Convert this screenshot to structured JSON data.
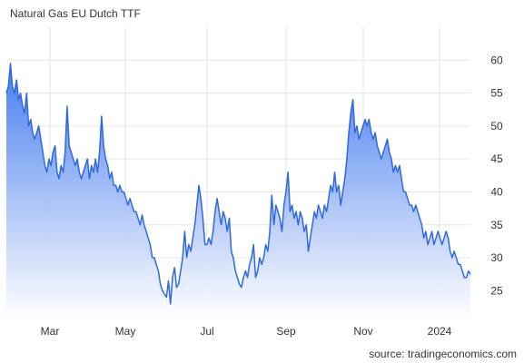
{
  "chart_data": {
    "type": "area",
    "title": "Natural Gas EU Dutch TTF",
    "source": "source: tradingeconomics.com",
    "xlabel": "",
    "ylabel": "",
    "x_tick_labels": [
      "Mar",
      "May",
      "Jul",
      "Sep",
      "Nov",
      "2024"
    ],
    "y_ticks": [
      25,
      30,
      35,
      40,
      45,
      50,
      55,
      60
    ],
    "ylim": [
      20.5,
      65
    ],
    "grid": true,
    "colors": {
      "line": "#2f68e0",
      "fill_top": "#3c74ee",
      "fill_bottom": "#ffffff",
      "grid": "#e6e6e6"
    },
    "series": [
      {
        "values": [
          55,
          56,
          59.5,
          56,
          55,
          57,
          54,
          55,
          53,
          52,
          55,
          50,
          51,
          49,
          48,
          49,
          50,
          48,
          46,
          44,
          43,
          45,
          44,
          46,
          47,
          43,
          42,
          44,
          43,
          46,
          53,
          47,
          46,
          45,
          44,
          45,
          43,
          42,
          43,
          44,
          45,
          42,
          44,
          43,
          45,
          43,
          46,
          51.5,
          47,
          45,
          44,
          42,
          43,
          41,
          41,
          40,
          41,
          40,
          40,
          39,
          38,
          39,
          38,
          37,
          37,
          36,
          35,
          36.5,
          35,
          34,
          33,
          32,
          30,
          30,
          29,
          28,
          26,
          25,
          24.5,
          24,
          26.5,
          23,
          27,
          28.5,
          25.5,
          26,
          28,
          30,
          34,
          30,
          32,
          31,
          33,
          35,
          38,
          41,
          39,
          36,
          32,
          32,
          33,
          32,
          34,
          37,
          39,
          37,
          35,
          37,
          36,
          34,
          36,
          31,
          30,
          28,
          27,
          26,
          25.5,
          27,
          28,
          27,
          29,
          30,
          32,
          27,
          28,
          30,
          29,
          30,
          32,
          31,
          34,
          39.5,
          35,
          38,
          37,
          36,
          34,
          38,
          40,
          43,
          37,
          38,
          36,
          37,
          35,
          37,
          36,
          34,
          35,
          31,
          33,
          35,
          37,
          36,
          38,
          37,
          36,
          38,
          37,
          39,
          41,
          40,
          43,
          40,
          41,
          38,
          40,
          42,
          45,
          49,
          52,
          54,
          49,
          50,
          48,
          49,
          50,
          51,
          50,
          51,
          49,
          48,
          49,
          47,
          46,
          45,
          46,
          47,
          48,
          46,
          45,
          43,
          44,
          43,
          44,
          42,
          40,
          40,
          39,
          38,
          38,
          37,
          38,
          37,
          36,
          35,
          33,
          34,
          32,
          33,
          34,
          32,
          33,
          34,
          33,
          32,
          33,
          34,
          33,
          31,
          30,
          31,
          30,
          29,
          29,
          28,
          27,
          27,
          28,
          27.5
        ]
      }
    ]
  }
}
